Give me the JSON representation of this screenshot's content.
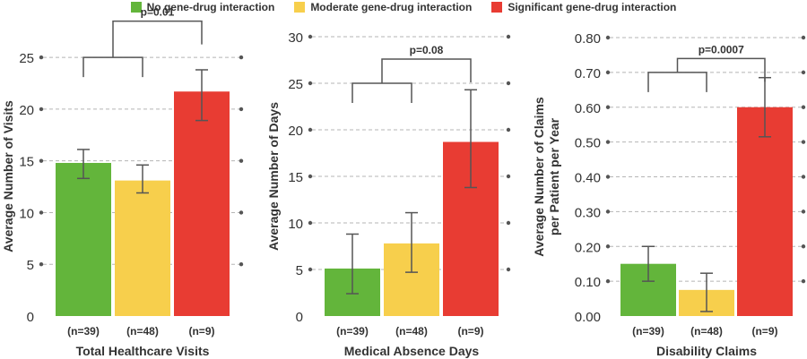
{
  "legend": [
    {
      "label": "No gene-drug interaction",
      "color": "#63b53b"
    },
    {
      "label": "Moderate gene-drug interaction",
      "color": "#f7cf4c"
    },
    {
      "label": "Significant gene-drug interaction",
      "color": "#e83c33"
    }
  ],
  "chart_data": [
    {
      "type": "bar",
      "title": "",
      "xlabel": "Total Healthcare Visits",
      "ylabel": "Average Number of Visits",
      "categories": [
        "(n=39)",
        "(n=48)",
        "(n=9)"
      ],
      "values": [
        14.8,
        13.1,
        21.7
      ],
      "errors": [
        [
          13.3,
          16.1
        ],
        [
          11.9,
          14.6
        ],
        [
          18.9,
          23.8
        ]
      ],
      "ylim": [
        0,
        27
      ],
      "yticks": [
        "0",
        "5",
        "10",
        "15",
        "20",
        "25"
      ],
      "ytick_values": [
        0,
        5,
        10,
        15,
        20,
        25
      ],
      "pvalue": "p=0.01",
      "bracket_y": [
        25,
        28.5
      ],
      "grid": true
    },
    {
      "type": "bar",
      "title": "",
      "xlabel": "Medical Absence Days",
      "ylabel": "Average Number of Days",
      "categories": [
        "(n=39)",
        "(n=48)",
        "(n=9)"
      ],
      "values": [
        5.1,
        7.8,
        18.7
      ],
      "errors": [
        [
          2.4,
          8.8
        ],
        [
          4.7,
          11.1
        ],
        [
          13.8,
          24.3
        ]
      ],
      "ylim": [
        0,
        30
      ],
      "yticks": [
        "0",
        "5",
        "10",
        "15",
        "20",
        "25",
        "30"
      ],
      "ytick_values": [
        0,
        5,
        10,
        15,
        20,
        25,
        30
      ],
      "pvalue": "p=0.08",
      "bracket_y": [
        25,
        27.6
      ],
      "grid": true
    },
    {
      "type": "bar",
      "title": "",
      "xlabel": "Disability Claims",
      "ylabel": "Average Number of Claims per Patient per Year",
      "ylabel_lines": [
        "Average Number of Claims",
        "per Patient per Year"
      ],
      "categories": [
        "(n=39)",
        "(n=48)",
        "(n=9)"
      ],
      "values": [
        0.15,
        0.075,
        0.6
      ],
      "errors": [
        [
          0.1,
          0.2
        ],
        [
          0.013,
          0.123
        ],
        [
          0.515,
          0.685
        ]
      ],
      "ylim": [
        0,
        0.8
      ],
      "yticks": [
        "0.00",
        "0.10",
        "0.20",
        "0.30",
        "0.40",
        "0.50",
        "0.60",
        "0.70",
        "0.80"
      ],
      "ytick_values": [
        0,
        0.1,
        0.2,
        0.3,
        0.4,
        0.5,
        0.6,
        0.7,
        0.8
      ],
      "pvalue": "p=0.0007",
      "bracket_y": [
        0.7,
        0.74
      ],
      "grid": true
    }
  ]
}
